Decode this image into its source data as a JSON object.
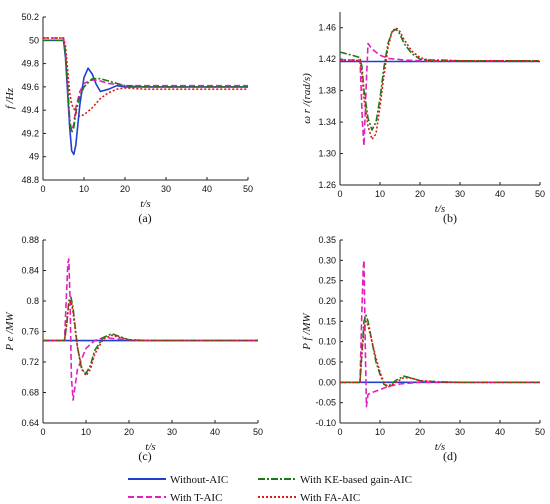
{
  "chart_data": [
    {
      "type": "line",
      "panel_label": "(a)",
      "ylabel": "f /Hz",
      "xlabel": "t/s",
      "xlim": [
        0,
        50
      ],
      "ylim": [
        48.8,
        50.2
      ],
      "xticks": [
        "0",
        "10",
        "20",
        "30",
        "40",
        "50"
      ],
      "yticks": [
        "48.8",
        "49",
        "49.2",
        "49.4",
        "49.6",
        "49.8",
        "50",
        "50.2"
      ],
      "series": [
        {
          "name": "Without-AIC",
          "color": "#1f3fd1",
          "dash": "solid",
          "x": [
            0,
            5,
            5.5,
            6,
            6.5,
            7,
            7.5,
            8,
            9,
            10,
            11,
            12,
            13,
            14,
            16,
            18,
            20,
            25,
            30,
            40,
            50
          ],
          "y": [
            50,
            50,
            49.85,
            49.55,
            49.25,
            49.05,
            49.02,
            49.1,
            49.45,
            49.68,
            49.76,
            49.71,
            49.62,
            49.56,
            49.58,
            49.61,
            49.6,
            49.6,
            49.6,
            49.6,
            49.6
          ]
        },
        {
          "name": "With T-AIC",
          "color": "#e020c0",
          "dash": "6,3",
          "x": [
            0,
            5,
            5.5,
            6,
            6.5,
            7,
            7.5,
            8,
            9,
            10,
            12,
            14,
            16,
            18,
            20,
            25,
            30,
            40,
            50
          ],
          "y": [
            50.02,
            50.02,
            49.9,
            49.6,
            49.3,
            49.22,
            49.28,
            49.42,
            49.56,
            49.63,
            49.66,
            49.65,
            49.63,
            49.62,
            49.61,
            49.61,
            49.61,
            49.61,
            49.61
          ]
        },
        {
          "name": "With KE-based gain-AIC",
          "color": "#1a7a1a",
          "dash": "7,2,2,2",
          "x": [
            0,
            5,
            5.5,
            6,
            6.5,
            7,
            7.5,
            8,
            9,
            10,
            12,
            14,
            16,
            18,
            20,
            25,
            30,
            40,
            50
          ],
          "y": [
            50,
            50,
            49.88,
            49.62,
            49.32,
            49.21,
            49.25,
            49.38,
            49.52,
            49.6,
            49.67,
            49.67,
            49.65,
            49.63,
            49.61,
            49.6,
            49.6,
            49.6,
            49.6
          ]
        },
        {
          "name": "With FA-AIC",
          "color": "#e01818",
          "dash": "2,2",
          "x": [
            0,
            5,
            5.5,
            6,
            6.5,
            7,
            8,
            9,
            10,
            12,
            14,
            16,
            18,
            20,
            25,
            30,
            40,
            50
          ],
          "y": [
            50.02,
            50.02,
            49.95,
            49.75,
            49.55,
            49.45,
            49.38,
            49.35,
            49.36,
            49.42,
            49.5,
            49.55,
            49.58,
            49.59,
            49.58,
            49.58,
            49.58,
            49.58
          ]
        }
      ]
    },
    {
      "type": "line",
      "panel_label": "(b)",
      "ylabel": "ω r /(rad/s)",
      "xlabel": "t/s",
      "xlim": [
        0,
        50
      ],
      "ylim": [
        1.26,
        1.48
      ],
      "xticks": [
        "0",
        "10",
        "20",
        "30",
        "40",
        "50"
      ],
      "yticks": [
        "1.26",
        "1.30",
        "1.34",
        "1.38",
        "1.42",
        "1.46"
      ],
      "series": [
        {
          "name": "Without-AIC",
          "color": "#1f3fd1",
          "dash": "solid",
          "x": [
            0,
            50
          ],
          "y": [
            1.417,
            1.417
          ]
        },
        {
          "name": "With T-AIC",
          "color": "#e020c0",
          "dash": "6,3",
          "x": [
            0,
            5,
            5.3,
            5.6,
            6,
            6.5,
            7,
            8,
            10,
            12,
            14,
            16,
            20,
            25,
            30,
            40,
            50
          ],
          "y": [
            1.419,
            1.419,
            1.38,
            1.34,
            1.31,
            1.38,
            1.44,
            1.433,
            1.425,
            1.421,
            1.42,
            1.419,
            1.418,
            1.418,
            1.418,
            1.418,
            1.418
          ]
        },
        {
          "name": "With KE-based gain-AIC",
          "color": "#1a7a1a",
          "dash": "7,2,2,2",
          "x": [
            0,
            3,
            5,
            5.5,
            6,
            7,
            8,
            9,
            10,
            11,
            12,
            13,
            14,
            15,
            16,
            18,
            20,
            22,
            25,
            30,
            40,
            50
          ],
          "y": [
            1.429,
            1.425,
            1.422,
            1.41,
            1.38,
            1.345,
            1.33,
            1.34,
            1.37,
            1.41,
            1.44,
            1.455,
            1.458,
            1.452,
            1.44,
            1.427,
            1.42,
            1.419,
            1.419,
            1.418,
            1.418,
            1.418
          ]
        },
        {
          "name": "With FA-AIC",
          "color": "#e01818",
          "dash": "2,2",
          "x": [
            0,
            3,
            5,
            5.5,
            6,
            7,
            8,
            9,
            10,
            11,
            12,
            13,
            14,
            15,
            16,
            18,
            20,
            22,
            25,
            30,
            40,
            50
          ],
          "y": [
            1.419,
            1.419,
            1.418,
            1.4,
            1.37,
            1.335,
            1.318,
            1.325,
            1.36,
            1.4,
            1.435,
            1.455,
            1.46,
            1.455,
            1.445,
            1.43,
            1.422,
            1.419,
            1.418,
            1.418,
            1.418,
            1.418
          ]
        }
      ]
    },
    {
      "type": "line",
      "panel_label": "(c)",
      "ylabel": "P e /MW",
      "xlabel": "t/s",
      "xlim": [
        0,
        50
      ],
      "ylim": [
        0.64,
        0.88
      ],
      "xticks": [
        "0",
        "10",
        "20",
        "30",
        "40",
        "50"
      ],
      "yticks": [
        "0.64",
        "0.68",
        "0.72",
        "0.76",
        "0.8",
        "0.84",
        "0.88"
      ],
      "series": [
        {
          "name": "Without-AIC",
          "color": "#1f3fd1",
          "dash": "solid",
          "x": [
            0,
            50
          ],
          "y": [
            0.748,
            0.748
          ]
        },
        {
          "name": "With T-AIC",
          "color": "#e020c0",
          "dash": "6,3",
          "x": [
            0,
            5,
            5.4,
            5.8,
            6,
            6.3,
            6.6,
            7,
            8,
            10,
            12,
            14,
            16,
            20,
            25,
            30,
            40,
            50
          ],
          "y": [
            0.748,
            0.748,
            0.8,
            0.85,
            0.855,
            0.8,
            0.7,
            0.67,
            0.71,
            0.738,
            0.748,
            0.752,
            0.751,
            0.749,
            0.748,
            0.748,
            0.748,
            0.748
          ]
        },
        {
          "name": "With KE-based gain-AIC",
          "color": "#1a7a1a",
          "dash": "7,2,2,2",
          "x": [
            0,
            5,
            5.5,
            6,
            6.5,
            7,
            8,
            9,
            10,
            11,
            12,
            14,
            16,
            18,
            20,
            25,
            30,
            40,
            50
          ],
          "y": [
            0.748,
            0.748,
            0.77,
            0.8,
            0.805,
            0.79,
            0.74,
            0.71,
            0.705,
            0.715,
            0.735,
            0.752,
            0.757,
            0.753,
            0.749,
            0.748,
            0.748,
            0.748,
            0.748
          ]
        },
        {
          "name": "With FA-AIC",
          "color": "#e01818",
          "dash": "2,2",
          "x": [
            0,
            5,
            5.5,
            6,
            6.5,
            7,
            8,
            9,
            10,
            11,
            12,
            14,
            16,
            18,
            20,
            25,
            30,
            40,
            50
          ],
          "y": [
            0.748,
            0.748,
            0.77,
            0.795,
            0.8,
            0.785,
            0.74,
            0.712,
            0.702,
            0.71,
            0.73,
            0.75,
            0.755,
            0.752,
            0.749,
            0.748,
            0.748,
            0.748,
            0.748
          ]
        }
      ]
    },
    {
      "type": "line",
      "panel_label": "(d)",
      "ylabel": "P f /MW",
      "xlabel": "t/s",
      "xlim": [
        0,
        50
      ],
      "ylim": [
        -0.1,
        0.35
      ],
      "xticks": [
        "0",
        "10",
        "20",
        "30",
        "40",
        "50"
      ],
      "yticks": [
        "-0.10",
        "-0.05",
        "0.00",
        "0.05",
        "0.10",
        "0.15",
        "0.20",
        "0.25",
        "0.30",
        "0.35"
      ],
      "series": [
        {
          "name": "Without-AIC",
          "color": "#1f3fd1",
          "dash": "solid",
          "x": [
            0,
            50
          ],
          "y": [
            0,
            0
          ]
        },
        {
          "name": "With T-AIC",
          "color": "#e020c0",
          "dash": "6,3",
          "x": [
            0,
            5,
            5.4,
            5.8,
            6,
            6.3,
            6.6,
            7,
            8,
            10,
            12,
            15,
            20,
            25,
            30,
            40,
            50
          ],
          "y": [
            0,
            0,
            0.15,
            0.28,
            0.3,
            0.1,
            -0.06,
            -0.03,
            -0.025,
            -0.018,
            -0.01,
            -0.004,
            0,
            0,
            0,
            0,
            0
          ]
        },
        {
          "name": "With KE-based gain-AIC",
          "color": "#1a7a1a",
          "dash": "7,2,2,2",
          "x": [
            0,
            5,
            5.5,
            6,
            6.5,
            7,
            8,
            9,
            10,
            11,
            12,
            14,
            16,
            18,
            20,
            25,
            30,
            40,
            50
          ],
          "y": [
            0,
            0,
            0.08,
            0.15,
            0.165,
            0.15,
            0.1,
            0.05,
            0.02,
            -0.005,
            -0.01,
            0.005,
            0.015,
            0.01,
            0.004,
            0.001,
            0,
            0,
            0
          ]
        },
        {
          "name": "With FA-AIC",
          "color": "#e01818",
          "dash": "2,2",
          "x": [
            0,
            5,
            5.5,
            6,
            6.5,
            7,
            8,
            9,
            10,
            11,
            12,
            14,
            16,
            18,
            20,
            25,
            30,
            40,
            50
          ],
          "y": [
            0,
            0,
            0.07,
            0.13,
            0.15,
            0.14,
            0.1,
            0.06,
            0.025,
            0,
            -0.012,
            0,
            0.012,
            0.01,
            0.004,
            0.001,
            0,
            0,
            0
          ]
        }
      ]
    }
  ],
  "legend": {
    "items": [
      {
        "label": "Without-AIC",
        "color": "#1f3fd1",
        "dash": "solid"
      },
      {
        "label": "With  KE-based gain-AIC",
        "color": "#1a7a1a",
        "dash": "7,2,2,2"
      },
      {
        "label": "With  T-AIC",
        "color": "#e020c0",
        "dash": "6,3"
      },
      {
        "label": "With FA-AIC",
        "color": "#e01818",
        "dash": "2,2"
      }
    ]
  }
}
